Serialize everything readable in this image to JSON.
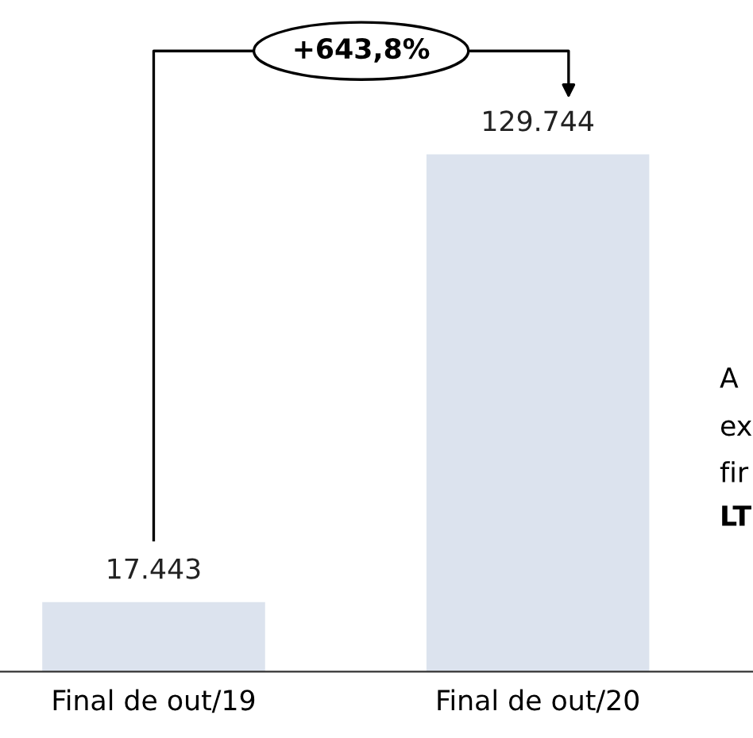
{
  "chart_data": {
    "type": "bar",
    "categories": [
      "Final de out/19",
      "Final de out/20"
    ],
    "values": [
      17443,
      129744
    ],
    "value_labels": [
      "17.443",
      "129.744"
    ],
    "color": "#dce3ee",
    "annotations": [
      "+643,8%",
      "A",
      "ex",
      "fir",
      "LT"
    ]
  }
}
